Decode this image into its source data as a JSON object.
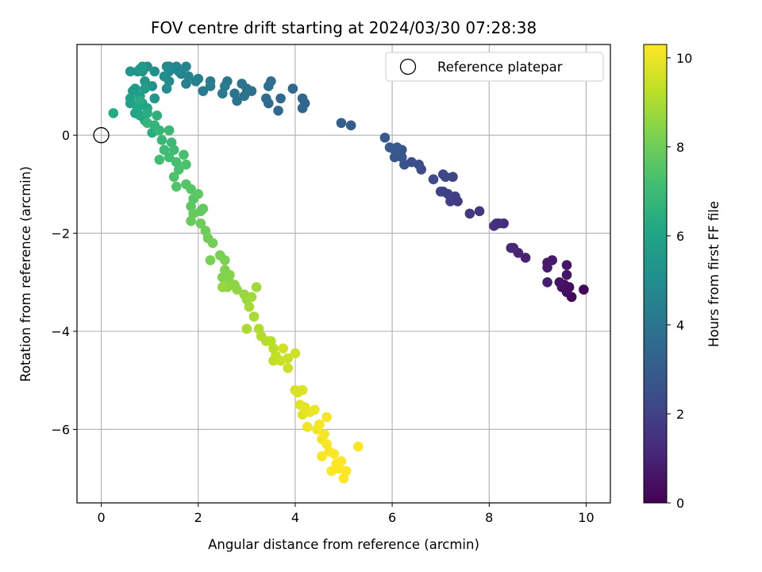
{
  "chart_data": {
    "type": "scatter",
    "title": "FOV centre drift starting at 2024/03/30 07:28:38",
    "xlabel": "Angular distance from reference (arcmin)",
    "ylabel": "Rotation from reference (arcmin)",
    "xlim": [
      -0.5,
      10.5
    ],
    "ylim": [
      -7.5,
      1.85
    ],
    "xticks": [
      0,
      2,
      4,
      6,
      8,
      10
    ],
    "yticks": [
      0,
      -2,
      -4,
      -6
    ],
    "grid": true,
    "legend": {
      "placement": "top-right",
      "entries": [
        "Reference platepar"
      ]
    },
    "reference_point": {
      "x": 0,
      "y": 0,
      "label": "Reference platepar"
    },
    "colorbar": {
      "label": "Hours from first FF file",
      "range": [
        0,
        10.3
      ],
      "ticks": [
        0,
        2,
        4,
        6,
        8,
        10
      ],
      "colormap": "viridis"
    },
    "points": [
      [
        9.95,
        -3.15,
        0.1
      ],
      [
        9.7,
        -3.3,
        0.2
      ],
      [
        9.65,
        -3.1,
        0.3
      ],
      [
        9.6,
        -3.2,
        0.35
      ],
      [
        9.55,
        -3.05,
        0.4
      ],
      [
        9.5,
        -3.1,
        0.45
      ],
      [
        9.45,
        -3.0,
        0.5
      ],
      [
        9.6,
        -2.85,
        0.55
      ],
      [
        9.6,
        -2.65,
        0.6
      ],
      [
        9.3,
        -2.55,
        0.7
      ],
      [
        9.2,
        -2.6,
        0.75
      ],
      [
        9.2,
        -2.7,
        0.8
      ],
      [
        9.2,
        -3.0,
        0.85
      ],
      [
        8.75,
        -2.5,
        1.0
      ],
      [
        8.6,
        -2.4,
        1.1
      ],
      [
        8.5,
        -2.3,
        1.15
      ],
      [
        8.45,
        -2.3,
        1.2
      ],
      [
        8.3,
        -1.8,
        1.3
      ],
      [
        8.2,
        -1.8,
        1.35
      ],
      [
        8.15,
        -1.8,
        1.4
      ],
      [
        8.1,
        -1.85,
        1.45
      ],
      [
        7.8,
        -1.55,
        1.6
      ],
      [
        7.6,
        -1.6,
        1.7
      ],
      [
        7.35,
        -1.35,
        1.8
      ],
      [
        7.3,
        -1.25,
        1.85
      ],
      [
        7.2,
        -1.35,
        1.9
      ],
      [
        7.15,
        -1.2,
        1.95
      ],
      [
        7.05,
        -1.15,
        2.0
      ],
      [
        7.0,
        -1.15,
        2.05
      ],
      [
        7.25,
        -0.85,
        2.1
      ],
      [
        7.05,
        -0.8,
        2.15
      ],
      [
        7.1,
        -0.85,
        2.2
      ],
      [
        6.85,
        -0.9,
        2.3
      ],
      [
        6.6,
        -0.7,
        2.4
      ],
      [
        6.55,
        -0.6,
        2.45
      ],
      [
        6.4,
        -0.55,
        2.5
      ],
      [
        6.25,
        -0.6,
        2.6
      ],
      [
        6.2,
        -0.45,
        2.7
      ],
      [
        6.2,
        -0.3,
        2.75
      ],
      [
        6.05,
        -0.45,
        2.8
      ],
      [
        6.05,
        -0.3,
        2.85
      ],
      [
        6.1,
        -0.25,
        2.9
      ],
      [
        5.95,
        -0.25,
        2.95
      ],
      [
        5.85,
        -0.05,
        3.0
      ],
      [
        5.15,
        0.2,
        3.05
      ],
      [
        4.95,
        0.25,
        3.1
      ],
      [
        4.15,
        0.55,
        3.3
      ],
      [
        4.2,
        0.65,
        3.35
      ],
      [
        4.15,
        0.75,
        3.4
      ],
      [
        3.95,
        0.95,
        3.45
      ],
      [
        3.65,
        0.5,
        3.5
      ],
      [
        3.7,
        0.75,
        3.55
      ],
      [
        3.45,
        0.65,
        3.6
      ],
      [
        3.4,
        0.75,
        3.65
      ],
      [
        3.45,
        1.0,
        3.7
      ],
      [
        3.5,
        1.1,
        3.75
      ],
      [
        3.1,
        0.9,
        3.8
      ],
      [
        3.0,
        0.95,
        3.85
      ],
      [
        2.95,
        0.8,
        3.9
      ],
      [
        2.8,
        0.7,
        3.95
      ],
      [
        2.75,
        0.85,
        4.0
      ],
      [
        2.9,
        1.05,
        4.05
      ],
      [
        2.6,
        1.1,
        4.1
      ],
      [
        2.55,
        1.0,
        4.15
      ],
      [
        2.5,
        0.85,
        4.2
      ],
      [
        2.25,
        1.0,
        4.25
      ],
      [
        2.1,
        0.9,
        4.3
      ],
      [
        2.25,
        1.1,
        4.35
      ],
      [
        2.0,
        1.15,
        4.4
      ],
      [
        1.95,
        1.1,
        4.45
      ],
      [
        1.75,
        1.05,
        4.5
      ],
      [
        1.8,
        1.2,
        4.55
      ],
      [
        1.65,
        1.25,
        4.6
      ],
      [
        1.75,
        1.4,
        4.65
      ],
      [
        1.6,
        1.3,
        4.7
      ],
      [
        1.55,
        1.4,
        4.75
      ],
      [
        1.4,
        1.4,
        4.8
      ],
      [
        1.35,
        1.4,
        4.85
      ],
      [
        1.4,
        1.3,
        4.9
      ],
      [
        1.4,
        1.1,
        4.95
      ],
      [
        1.3,
        1.2,
        5.0
      ],
      [
        1.35,
        0.95,
        5.05
      ],
      [
        0.95,
        1.4,
        5.1
      ],
      [
        1.1,
        1.3,
        5.15
      ],
      [
        1.05,
        1.0,
        5.2
      ],
      [
        0.85,
        1.3,
        5.25
      ],
      [
        0.6,
        1.3,
        5.3
      ],
      [
        0.75,
        1.3,
        5.35
      ],
      [
        1.1,
        0.75,
        5.4
      ],
      [
        0.9,
        1.1,
        5.45
      ],
      [
        0.85,
        1.4,
        5.5
      ],
      [
        0.8,
        1.35,
        5.55
      ],
      [
        0.7,
        0.95,
        5.6
      ],
      [
        0.65,
        0.9,
        5.65
      ],
      [
        0.8,
        0.8,
        5.7
      ],
      [
        0.9,
        0.95,
        5.75
      ],
      [
        0.75,
        0.6,
        5.8
      ],
      [
        0.6,
        0.75,
        5.85
      ],
      [
        0.6,
        0.65,
        5.9
      ],
      [
        0.85,
        0.65,
        5.95
      ],
      [
        0.7,
        0.45,
        6.0
      ],
      [
        0.95,
        0.55,
        6.05
      ],
      [
        0.8,
        0.4,
        6.1
      ],
      [
        0.75,
        0.55,
        6.15
      ],
      [
        0.9,
        0.3,
        6.2
      ],
      [
        0.25,
        0.45,
        6.25
      ],
      [
        0.8,
        0.7,
        6.3
      ],
      [
        0.95,
        0.45,
        6.35
      ],
      [
        1.1,
        0.2,
        6.4
      ],
      [
        1.05,
        0.05,
        6.45
      ],
      [
        1.15,
        0.4,
        6.6
      ],
      [
        1.1,
        0.2,
        6.7
      ],
      [
        0.95,
        0.25,
        6.75
      ],
      [
        1.2,
        0.1,
        6.8
      ],
      [
        1.25,
        -0.1,
        6.85
      ],
      [
        1.4,
        0.1,
        6.9
      ],
      [
        1.45,
        -0.15,
        6.95
      ],
      [
        1.3,
        -0.3,
        7.0
      ],
      [
        1.5,
        -0.3,
        7.05
      ],
      [
        1.4,
        -0.45,
        7.1
      ],
      [
        1.2,
        -0.5,
        7.15
      ],
      [
        1.55,
        -0.55,
        7.2
      ],
      [
        1.7,
        -0.4,
        7.25
      ],
      [
        1.6,
        -0.7,
        7.3
      ],
      [
        1.75,
        -0.6,
        7.35
      ],
      [
        1.5,
        -0.85,
        7.4
      ],
      [
        1.55,
        -1.05,
        7.45
      ],
      [
        1.75,
        -1.0,
        7.5
      ],
      [
        1.85,
        -1.1,
        7.55
      ],
      [
        1.9,
        -1.3,
        7.6
      ],
      [
        1.85,
        -1.45,
        7.65
      ],
      [
        2.0,
        -1.2,
        7.7
      ],
      [
        2.1,
        -1.5,
        7.75
      ],
      [
        2.05,
        -1.55,
        7.8
      ],
      [
        1.9,
        -1.6,
        7.85
      ],
      [
        1.85,
        -1.75,
        7.9
      ],
      [
        2.05,
        -1.8,
        7.95
      ],
      [
        2.15,
        -1.95,
        8.0
      ],
      [
        2.2,
        -2.1,
        8.05
      ],
      [
        2.3,
        -2.2,
        8.1
      ],
      [
        2.25,
        -2.55,
        8.15
      ],
      [
        2.45,
        -2.45,
        8.2
      ],
      [
        2.55,
        -2.55,
        8.25
      ],
      [
        2.55,
        -2.75,
        8.3
      ],
      [
        2.5,
        -2.9,
        8.35
      ],
      [
        2.65,
        -2.85,
        8.4
      ],
      [
        2.65,
        -3.0,
        8.45
      ],
      [
        2.6,
        -3.1,
        8.5
      ],
      [
        2.75,
        -3.05,
        8.55
      ],
      [
        2.8,
        -3.15,
        8.6
      ],
      [
        2.5,
        -3.1,
        8.65
      ],
      [
        2.95,
        -3.25,
        8.7
      ],
      [
        3.0,
        -3.35,
        8.75
      ],
      [
        3.1,
        -3.3,
        8.8
      ],
      [
        3.2,
        -3.1,
        8.85
      ],
      [
        3.05,
        -3.5,
        8.9
      ],
      [
        3.15,
        -3.7,
        8.95
      ],
      [
        3.0,
        -3.95,
        9.0
      ],
      [
        3.25,
        -3.95,
        9.05
      ],
      [
        3.3,
        -4.1,
        9.1
      ],
      [
        3.4,
        -4.2,
        9.15
      ],
      [
        3.5,
        -4.2,
        9.2
      ],
      [
        3.55,
        -4.35,
        9.25
      ],
      [
        3.6,
        -4.5,
        9.3
      ],
      [
        3.55,
        -4.6,
        9.35
      ],
      [
        3.7,
        -4.6,
        9.4
      ],
      [
        3.85,
        -4.55,
        9.45
      ],
      [
        3.85,
        -4.75,
        9.5
      ],
      [
        4.0,
        -4.45,
        9.55
      ],
      [
        3.75,
        -4.35,
        9.6
      ],
      [
        4.0,
        -5.2,
        9.65
      ],
      [
        4.05,
        -5.25,
        9.7
      ],
      [
        4.15,
        -5.2,
        9.75
      ],
      [
        4.1,
        -5.5,
        9.8
      ],
      [
        4.15,
        -5.7,
        9.85
      ],
      [
        4.2,
        -5.55,
        9.9
      ],
      [
        4.3,
        -5.65,
        9.95
      ],
      [
        4.4,
        -5.6,
        10.0
      ],
      [
        4.25,
        -5.95,
        10.05
      ],
      [
        4.45,
        -6.0,
        10.1
      ],
      [
        4.5,
        -5.9,
        10.12
      ],
      [
        4.55,
        -6.2,
        10.15
      ],
      [
        4.6,
        -6.1,
        10.17
      ],
      [
        4.65,
        -6.3,
        10.2
      ],
      [
        4.7,
        -6.45,
        10.22
      ],
      [
        4.55,
        -6.55,
        10.24
      ],
      [
        4.8,
        -6.5,
        10.25
      ],
      [
        4.85,
        -6.7,
        10.26
      ],
      [
        4.75,
        -6.85,
        10.27
      ],
      [
        4.9,
        -6.8,
        10.28
      ],
      [
        4.95,
        -6.65,
        10.29
      ],
      [
        5.05,
        -6.85,
        10.3
      ],
      [
        5.0,
        -7.0,
        10.3
      ],
      [
        4.65,
        -5.75,
        10.2
      ],
      [
        5.3,
        -6.35,
        10.3
      ]
    ]
  }
}
